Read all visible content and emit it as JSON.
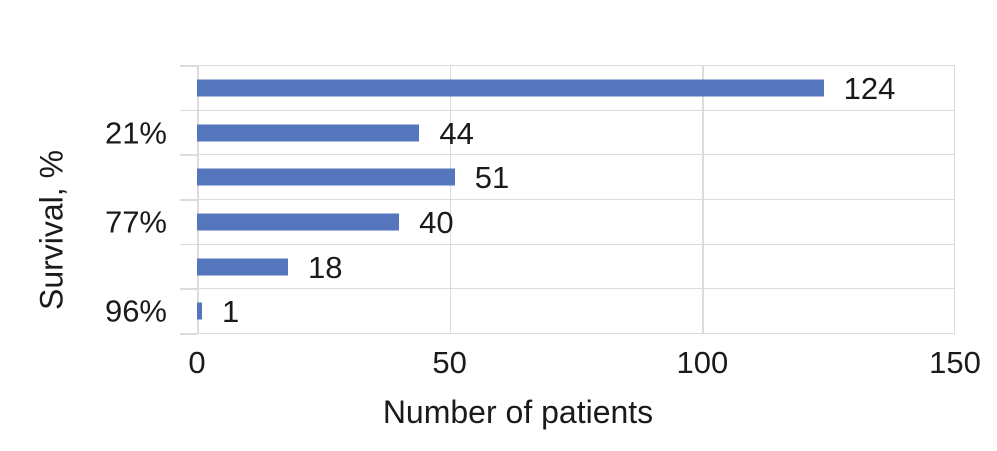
{
  "chart_data": {
    "type": "bar",
    "orientation": "horizontal",
    "title": "",
    "xlabel": "Number of patients",
    "ylabel": "Survival, %",
    "xlim": [
      0,
      150
    ],
    "xticks": [
      0,
      50,
      100,
      150
    ],
    "grid": true,
    "legend_position": "none",
    "rows": [
      {
        "category": "",
        "value": 124
      },
      {
        "category": "21%",
        "value": 44
      },
      {
        "category": "",
        "value": 51
      },
      {
        "category": "77%",
        "value": 40
      },
      {
        "category": "",
        "value": 18
      },
      {
        "category": "96%",
        "value": 1
      }
    ],
    "colors": {
      "bar": "#5575BC",
      "gridline": "#DCDCDC",
      "text": "#1A1A1A",
      "background": "#FFFFFF"
    }
  }
}
